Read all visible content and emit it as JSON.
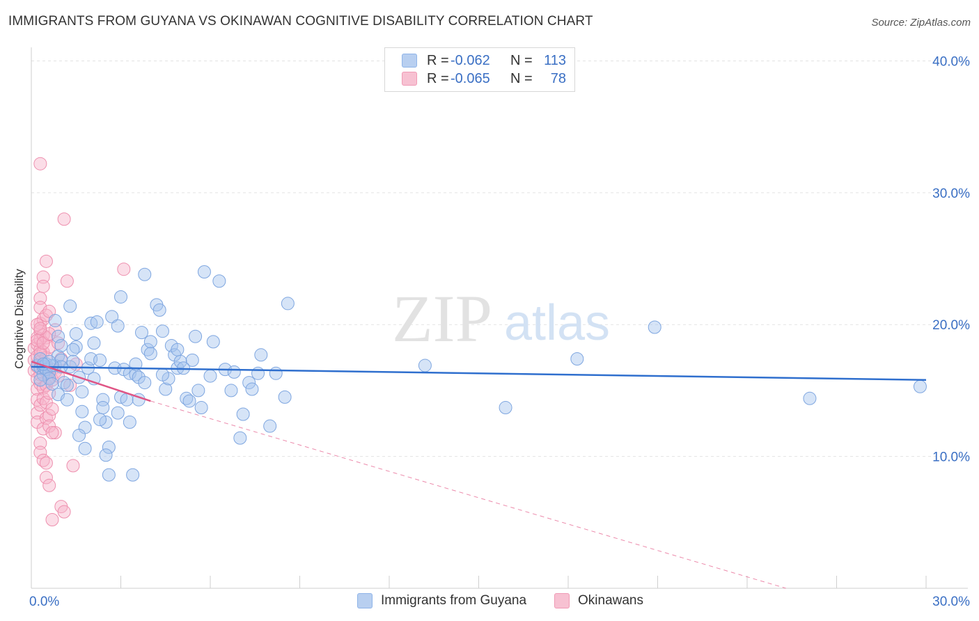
{
  "title": "IMMIGRANTS FROM GUYANA VS OKINAWAN COGNITIVE DISABILITY CORRELATION CHART",
  "source": "Source: ZipAtlas.com",
  "watermark": {
    "zip": "ZIP",
    "atlas": "atlas"
  },
  "legend": {
    "r_label": "R =",
    "n_label": "N =",
    "series": [
      {
        "name": "Immigrants from Guyana",
        "r": "-0.062",
        "n": "113",
        "color": "#8fb4e8",
        "fill": "#b8cff0",
        "line": "#2f6fce"
      },
      {
        "name": "Okinawans",
        "r": "-0.065",
        "n": "78",
        "color": "#f09ab5",
        "fill": "#f7c1d2",
        "line": "#e05585"
      }
    ]
  },
  "chart_data": {
    "type": "scatter",
    "title": "IMMIGRANTS FROM GUYANA VS OKINAWAN COGNITIVE DISABILITY CORRELATION CHART",
    "xlabel": "",
    "ylabel": "Cognitive Disability",
    "xlim": [
      0,
      30
    ],
    "ylim": [
      0,
      40.5
    ],
    "x_tick_labels": [
      "0.0%",
      "30.0%"
    ],
    "y_ticks": [
      10,
      20,
      30,
      40
    ],
    "y_tick_labels": [
      "10.0%",
      "20.0%",
      "30.0%",
      "40.0%"
    ],
    "grid": true,
    "series": [
      {
        "name": "Immigrants from Guyana",
        "points": [
          [
            0.2,
            16.9
          ],
          [
            0.3,
            16.7
          ],
          [
            0.3,
            17.4
          ],
          [
            0.4,
            16.2
          ],
          [
            0.4,
            16.8
          ],
          [
            0.5,
            17.0
          ],
          [
            0.5,
            16.6
          ],
          [
            0.6,
            16.4
          ],
          [
            0.6,
            15.9
          ],
          [
            0.7,
            15.5
          ],
          [
            0.8,
            16.9
          ],
          [
            0.8,
            20.3
          ],
          [
            0.9,
            19.1
          ],
          [
            0.9,
            17.6
          ],
          [
            1.0,
            18.4
          ],
          [
            1.0,
            17.3
          ],
          [
            1.1,
            15.6
          ],
          [
            1.2,
            15.4
          ],
          [
            1.3,
            16.8
          ],
          [
            1.3,
            21.4
          ],
          [
            1.4,
            17.2
          ],
          [
            1.5,
            18.3
          ],
          [
            1.5,
            19.3
          ],
          [
            1.6,
            16.0
          ],
          [
            1.7,
            14.9
          ],
          [
            1.7,
            13.4
          ],
          [
            1.8,
            12.2
          ],
          [
            1.9,
            16.7
          ],
          [
            2.0,
            17.4
          ],
          [
            2.0,
            20.1
          ],
          [
            2.1,
            18.6
          ],
          [
            2.2,
            20.2
          ],
          [
            2.3,
            17.3
          ],
          [
            2.4,
            14.3
          ],
          [
            2.4,
            13.7
          ],
          [
            2.5,
            12.6
          ],
          [
            2.6,
            10.7
          ],
          [
            2.7,
            20.6
          ],
          [
            2.8,
            16.7
          ],
          [
            2.9,
            19.9
          ],
          [
            3.0,
            22.1
          ],
          [
            3.0,
            14.5
          ],
          [
            3.1,
            16.6
          ],
          [
            3.2,
            14.3
          ],
          [
            3.3,
            16.3
          ],
          [
            3.4,
            8.6
          ],
          [
            3.5,
            16.2
          ],
          [
            3.5,
            17.0
          ],
          [
            3.6,
            16.0
          ],
          [
            3.7,
            19.4
          ],
          [
            3.8,
            15.6
          ],
          [
            3.9,
            18.1
          ],
          [
            4.0,
            18.7
          ],
          [
            4.0,
            17.8
          ],
          [
            4.2,
            21.5
          ],
          [
            4.3,
            21.1
          ],
          [
            4.4,
            19.5
          ],
          [
            4.5,
            15.1
          ],
          [
            4.6,
            15.9
          ],
          [
            4.7,
            18.4
          ],
          [
            4.8,
            17.7
          ],
          [
            4.9,
            16.7
          ],
          [
            5.0,
            17.2
          ],
          [
            5.2,
            14.4
          ],
          [
            5.3,
            14.2
          ],
          [
            5.4,
            17.3
          ],
          [
            5.6,
            15.0
          ],
          [
            5.7,
            13.7
          ],
          [
            5.8,
            24.0
          ],
          [
            6.0,
            16.1
          ],
          [
            6.1,
            18.7
          ],
          [
            6.3,
            23.3
          ],
          [
            6.5,
            16.6
          ],
          [
            6.8,
            16.4
          ],
          [
            7.0,
            11.4
          ],
          [
            7.3,
            15.6
          ],
          [
            7.4,
            15.1
          ],
          [
            7.6,
            16.3
          ],
          [
            7.7,
            17.7
          ],
          [
            8.0,
            12.3
          ],
          [
            8.2,
            16.3
          ],
          [
            8.5,
            14.5
          ],
          [
            8.6,
            21.6
          ],
          [
            13.2,
            16.9
          ],
          [
            15.9,
            13.7
          ],
          [
            18.3,
            17.4
          ],
          [
            20.9,
            19.8
          ],
          [
            26.1,
            14.4
          ],
          [
            29.8,
            15.3
          ],
          [
            0.9,
            14.7
          ],
          [
            1.2,
            14.3
          ],
          [
            1.4,
            18.1
          ],
          [
            1.6,
            11.6
          ],
          [
            1.8,
            10.6
          ],
          [
            2.1,
            15.9
          ],
          [
            2.3,
            12.8
          ],
          [
            2.5,
            10.1
          ],
          [
            2.6,
            8.6
          ],
          [
            2.9,
            13.3
          ],
          [
            3.3,
            12.6
          ],
          [
            3.6,
            14.3
          ],
          [
            3.8,
            23.8
          ],
          [
            4.4,
            16.2
          ],
          [
            4.9,
            18.1
          ],
          [
            5.1,
            16.7
          ],
          [
            5.5,
            19.1
          ],
          [
            6.7,
            15.0
          ],
          [
            7.1,
            13.2
          ],
          [
            1.0,
            16.8
          ],
          [
            0.7,
            16.9
          ],
          [
            0.6,
            17.2
          ],
          [
            0.4,
            17.0
          ],
          [
            0.3,
            15.8
          ]
        ]
      },
      {
        "name": "Okinawans",
        "points": [
          [
            0.1,
            17.3
          ],
          [
            0.1,
            18.2
          ],
          [
            0.1,
            16.5
          ],
          [
            0.2,
            19.0
          ],
          [
            0.2,
            18.5
          ],
          [
            0.2,
            17.6
          ],
          [
            0.2,
            16.8
          ],
          [
            0.2,
            15.9
          ],
          [
            0.2,
            15.1
          ],
          [
            0.2,
            14.3
          ],
          [
            0.2,
            13.3
          ],
          [
            0.2,
            12.6
          ],
          [
            0.3,
            20.1
          ],
          [
            0.3,
            19.5
          ],
          [
            0.3,
            18.9
          ],
          [
            0.3,
            18.1
          ],
          [
            0.3,
            17.2
          ],
          [
            0.3,
            16.2
          ],
          [
            0.3,
            15.5
          ],
          [
            0.3,
            13.9
          ],
          [
            0.3,
            11.0
          ],
          [
            0.3,
            10.3
          ],
          [
            0.3,
            32.2
          ],
          [
            0.3,
            22.0
          ],
          [
            0.3,
            21.3
          ],
          [
            0.4,
            23.6
          ],
          [
            0.4,
            22.9
          ],
          [
            0.4,
            20.4
          ],
          [
            0.4,
            19.2
          ],
          [
            0.4,
            17.9
          ],
          [
            0.4,
            16.9
          ],
          [
            0.4,
            15.2
          ],
          [
            0.4,
            14.4
          ],
          [
            0.4,
            12.1
          ],
          [
            0.4,
            9.7
          ],
          [
            0.5,
            24.8
          ],
          [
            0.5,
            20.7
          ],
          [
            0.5,
            19.0
          ],
          [
            0.5,
            17.5
          ],
          [
            0.5,
            16.4
          ],
          [
            0.5,
            15.4
          ],
          [
            0.5,
            14.1
          ],
          [
            0.5,
            12.9
          ],
          [
            0.5,
            9.5
          ],
          [
            0.5,
            8.4
          ],
          [
            0.6,
            21.0
          ],
          [
            0.6,
            18.3
          ],
          [
            0.6,
            16.0
          ],
          [
            0.6,
            14.8
          ],
          [
            0.6,
            13.1
          ],
          [
            0.6,
            12.3
          ],
          [
            0.6,
            7.8
          ],
          [
            0.7,
            16.6
          ],
          [
            0.7,
            15.8
          ],
          [
            0.7,
            13.6
          ],
          [
            0.7,
            5.2
          ],
          [
            0.8,
            19.6
          ],
          [
            0.8,
            16.4
          ],
          [
            0.8,
            11.8
          ],
          [
            0.9,
            18.6
          ],
          [
            0.9,
            16.1
          ],
          [
            1.0,
            17.4
          ],
          [
            1.0,
            6.2
          ],
          [
            1.1,
            28.0
          ],
          [
            1.1,
            5.8
          ],
          [
            1.2,
            23.3
          ],
          [
            1.3,
            15.4
          ],
          [
            1.4,
            9.3
          ],
          [
            1.5,
            17.0
          ],
          [
            3.1,
            24.2
          ],
          [
            0.2,
            20.0
          ],
          [
            0.2,
            18.8
          ],
          [
            0.3,
            17.8
          ],
          [
            0.4,
            18.6
          ],
          [
            0.5,
            16.8
          ],
          [
            0.6,
            19.3
          ],
          [
            0.7,
            11.8
          ],
          [
            0.3,
            19.7
          ]
        ]
      }
    ],
    "trendlines": [
      {
        "series": "Immigrants from Guyana",
        "x": [
          0,
          30
        ],
        "y": [
          16.8,
          15.8
        ],
        "style": "solid"
      },
      {
        "series": "Okinawans",
        "x": [
          0,
          4.0
        ],
        "y": [
          17.2,
          14.2
        ],
        "style": "solid"
      },
      {
        "series": "Okinawans",
        "x": [
          4.0,
          25.3
        ],
        "y": [
          14.2,
          0
        ],
        "style": "dashed"
      }
    ]
  }
}
